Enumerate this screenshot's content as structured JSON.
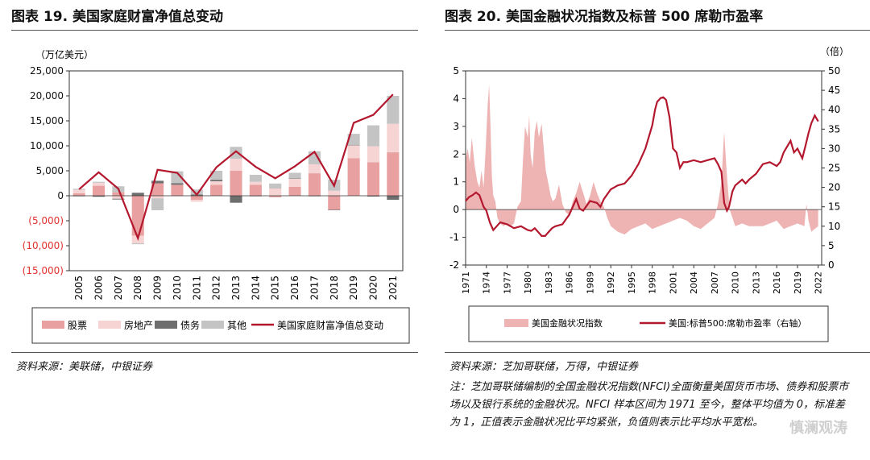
{
  "left": {
    "title": "图表 19. 美国家庭财富净值总变动",
    "unit": "（万亿美元）",
    "source": "资料来源：美联储，中银证券"
  },
  "right": {
    "title": "图表 20. 美国金融状况指数及标普 500 席勒市盈率",
    "right_unit": "（倍）",
    "source": "资料来源：芝加哥联储，万得，中银证券",
    "note": "注：芝加哥联储编制的全国金融状况指数(NFCI)全面衡量美国货币市场、债券和股票市场以及银行系统的金融状况。NFCI 样本区间为 1971 至今，整体平均值为 0，标准差为 1，正值表示金融状况比平均紧张，负值则表示比平均水平宽松。"
  },
  "watermark": "慎澜观涛",
  "colors": {
    "stocks": "#e8a0a0",
    "realestate": "#f6d4d4",
    "bonds": "#6e6e6e",
    "other": "#c4c4c4",
    "line": "#b4182e",
    "nfci": "#eeb3b3",
    "negative": "#e0322d"
  },
  "chart_data": [
    {
      "type": "bar",
      "stacked": true,
      "ylabel": "（万亿美元）",
      "ylim": [
        -15000,
        25000
      ],
      "yticks": [
        25000,
        20000,
        15000,
        10000,
        5000,
        0,
        -5000,
        -10000,
        -15000
      ],
      "ytick_labels": [
        "25,000",
        "20,000",
        "15,000",
        "10,000",
        "5,000",
        "0",
        "(5,000)",
        "(10,000)",
        "(15,000)"
      ],
      "categories": [
        "2005",
        "2006",
        "2007",
        "2008",
        "2009",
        "2010",
        "2011",
        "2012",
        "2013",
        "2014",
        "2015",
        "2016",
        "2017",
        "2018",
        "2019",
        "2020",
        "2021"
      ],
      "series": [
        {
          "name": "股票",
          "color": "#e8a0a0",
          "values": [
            500,
            2000,
            700,
            -8000,
            2500,
            2200,
            -800,
            2200,
            5000,
            2200,
            -300,
            1800,
            4500,
            -2800,
            7500,
            6700,
            8700
          ]
        },
        {
          "name": "房地产",
          "color": "#f6d4d4",
          "values": [
            700,
            600,
            -600,
            -1500,
            -500,
            -100,
            -400,
            700,
            2400,
            600,
            1500,
            1600,
            1800,
            1000,
            2600,
            3200,
            5700
          ]
        },
        {
          "name": "债务",
          "color": "#6e6e6e",
          "values": [
            -100,
            -200,
            -150,
            600,
            500,
            300,
            250,
            300,
            -1400,
            -100,
            50,
            100,
            -100,
            -100,
            100,
            -150,
            -800
          ]
        },
        {
          "name": "其他",
          "color": "#c4c4c4",
          "values": [
            200,
            200,
            1200,
            -200,
            -2400,
            2400,
            1000,
            1800,
            2400,
            1400,
            900,
            1100,
            2600,
            2200,
            2200,
            4200,
            5600
          ]
        }
      ],
      "line": {
        "name": "美国家庭财富净值总变动",
        "color": "#b4182e",
        "values": [
          1300,
          4700,
          1400,
          -8500,
          5200,
          4600,
          200,
          5700,
          8900,
          5800,
          3500,
          5900,
          8800,
          2000,
          14600,
          16200,
          20300
        ]
      },
      "legend_position": "bottom"
    },
    {
      "type": "area+line",
      "x_tick_labels": [
        "1971",
        "1974",
        "1977",
        "1980",
        "1983",
        "1986",
        "1989",
        "1992",
        "1995",
        "1998",
        "2001",
        "2004",
        "2007",
        "2010",
        "2013",
        "2016",
        "2019",
        "2022"
      ],
      "xlim": [
        1971,
        2022.5
      ],
      "y_left": {
        "ylim": [
          -2,
          5
        ],
        "ticks": [
          5,
          4,
          3,
          2,
          1,
          0,
          -1,
          -2
        ]
      },
      "y_right": {
        "label": "（倍）",
        "ylim": [
          0,
          50
        ],
        "ticks": [
          50,
          45,
          40,
          35,
          30,
          25,
          20,
          15,
          10,
          5,
          0
        ]
      },
      "series": [
        {
          "name": "美国金融状况指数",
          "axis": "left",
          "kind": "area",
          "color": "#eeb3b3",
          "x": [
            1971,
            1971.3,
            1971.6,
            1971.9,
            1972.3,
            1972.7,
            1973,
            1973.3,
            1973.6,
            1973.9,
            1974.2,
            1974.4,
            1974.6,
            1974.8,
            1975,
            1975.3,
            1975.6,
            1976,
            1976.5,
            1977,
            1977.5,
            1978,
            1978.5,
            1979,
            1979.3,
            1979.6,
            1980,
            1980.2,
            1980.4,
            1980.7,
            1981,
            1981.3,
            1981.6,
            1982,
            1982.3,
            1982.6,
            1983,
            1983.3,
            1983.6,
            1984,
            1984.5,
            1985,
            1985.5,
            1986,
            1986.5,
            1987,
            1987.5,
            1988,
            1988.5,
            1989,
            1989.5,
            1990,
            1990.5,
            1991,
            1991.5,
            1992,
            1993,
            1994,
            1995,
            1996,
            1997,
            1998,
            1999,
            2000,
            2001,
            2002,
            2003,
            2004,
            2005,
            2006,
            2007,
            2007.5,
            2008,
            2008.4,
            2008.8,
            2009.2,
            2009.6,
            2010,
            2011,
            2012,
            2013,
            2014,
            2015,
            2016,
            2017,
            2018,
            2019,
            2020,
            2020.3,
            2020.6,
            2021,
            2022
          ],
          "y": [
            1.8,
            2.2,
            1.7,
            2.6,
            1.6,
            1.0,
            0.8,
            1.4,
            0.8,
            2.2,
            3.8,
            4.5,
            3.0,
            1.2,
            0.5,
            0.3,
            -0.3,
            -0.5,
            -0.6,
            -0.5,
            -0.6,
            -0.5,
            0.1,
            0.3,
            1.8,
            3.0,
            2.6,
            3.4,
            2.0,
            1.5,
            2.8,
            3.2,
            2.6,
            3.1,
            2.2,
            1.4,
            0.9,
            0.5,
            0.3,
            0.4,
            0.9,
            0.2,
            -0.1,
            -0.2,
            0.3,
            0.6,
            1.0,
            0.6,
            0.2,
            0.5,
            1.0,
            0.6,
            0.3,
            0.1,
            -0.3,
            -0.6,
            -0.8,
            -0.9,
            -0.7,
            -0.6,
            -0.5,
            -0.7,
            -0.6,
            -0.5,
            -0.4,
            -0.3,
            -0.4,
            -0.6,
            -0.7,
            -0.5,
            -0.3,
            0.2,
            1.0,
            2.8,
            1.2,
            0.0,
            -0.3,
            -0.6,
            -0.5,
            -0.6,
            -0.6,
            -0.6,
            -0.5,
            -0.4,
            -0.7,
            -0.6,
            -0.5,
            -0.6,
            0.2,
            -0.4,
            -0.8,
            -0.6
          ]
        },
        {
          "name": "美国:标普500:席勒市盈率（右轴）",
          "axis": "right",
          "kind": "line",
          "color": "#b4182e",
          "x": [
            1971,
            1971.5,
            1972,
            1972.5,
            1973,
            1973.6,
            1974,
            1974.5,
            1975,
            1975.5,
            1976,
            1977,
            1978,
            1979,
            1980,
            1980.5,
            1981,
            1981.5,
            1982,
            1982.5,
            1983,
            1983.5,
            1984,
            1985,
            1986,
            1987,
            1987.5,
            1988,
            1989,
            1990,
            1990.5,
            1991,
            1992,
            1993,
            1994,
            1995,
            1996,
            1997,
            1998,
            1998.4,
            1998.7,
            1999.2,
            1999.6,
            2000,
            2000.5,
            2001,
            2001.5,
            2002,
            2002.5,
            2003,
            2004,
            2005,
            2006,
            2007,
            2007.5,
            2008,
            2008.4,
            2008.8,
            2009.1,
            2009.6,
            2010,
            2011,
            2011.5,
            2012,
            2013,
            2014,
            2015,
            2016,
            2016.5,
            2017,
            2018,
            2018.5,
            2019,
            2019.7,
            2020.2,
            2020.6,
            2021,
            2021.5,
            2022
          ],
          "y": [
            16.5,
            17.5,
            18.0,
            18.7,
            18.0,
            15.0,
            14.0,
            11.0,
            9.0,
            10.0,
            11.0,
            10.5,
            9.5,
            10.0,
            9.0,
            8.8,
            9.5,
            8.5,
            7.5,
            7.5,
            8.5,
            9.5,
            10.0,
            10.5,
            13.0,
            17.0,
            14.5,
            14.0,
            16.5,
            16.0,
            15.0,
            17.0,
            19.5,
            20.5,
            21.0,
            23.0,
            26.0,
            30.0,
            36.0,
            40.0,
            42.0,
            43.0,
            43.2,
            42.5,
            38.0,
            30.0,
            29.0,
            25.0,
            26.5,
            26.5,
            27.0,
            26.5,
            27.0,
            27.5,
            26.0,
            24.0,
            16.0,
            14.0,
            15.0,
            19.0,
            20.5,
            22.0,
            21.0,
            22.0,
            23.5,
            26.0,
            26.5,
            25.5,
            26.5,
            29.0,
            32.0,
            29.0,
            30.0,
            27.5,
            31.0,
            34.0,
            36.5,
            38.5,
            37.0
          ]
        }
      ],
      "legend_position": "bottom"
    }
  ]
}
